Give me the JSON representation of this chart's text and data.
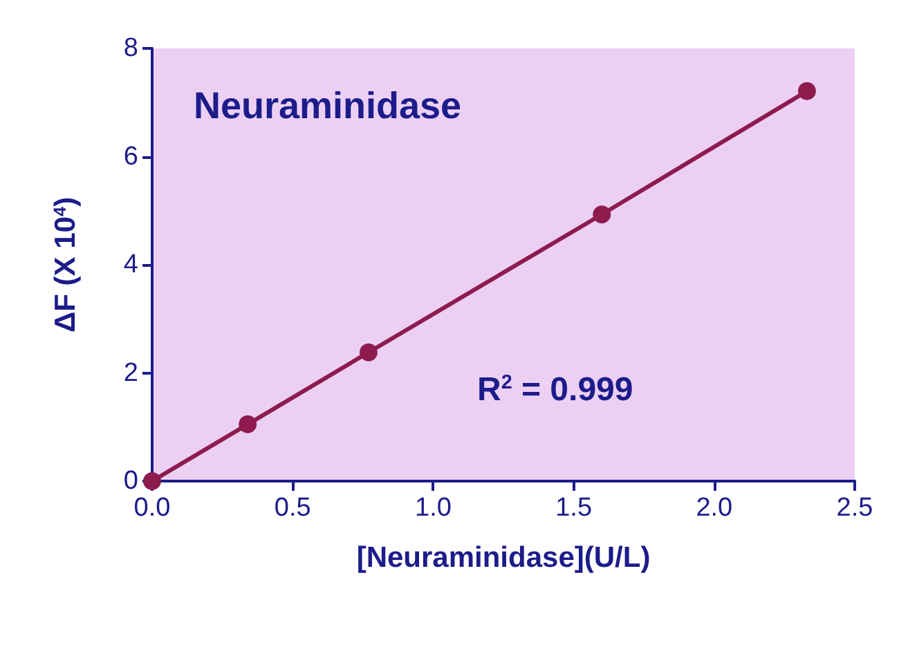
{
  "chart_data": {
    "type": "line",
    "title": "Neuraminidase",
    "xlabel": "[Neuraminidase](U/L)",
    "ylabel": "ΔF (X 10$^{4}$)",
    "annotations": [
      "R$^{2}$ = 0.999"
    ],
    "x": [
      0,
      0.34,
      0.77,
      1.6,
      2.33
    ],
    "series": [
      {
        "color": "#8e1b4e",
        "values": [
          0,
          1.05,
          2.38,
          4.93,
          7.21
        ]
      }
    ],
    "xlim": [
      0,
      2.5
    ],
    "xticks": [
      {
        "value": 0,
        "label": "0.0"
      },
      0.5,
      {
        "value": 1,
        "label": "1.0"
      },
      1.5,
      {
        "value": 2,
        "label": "2.0"
      },
      2.5
    ],
    "ylim": [
      0,
      8
    ],
    "yticks": [
      0,
      2,
      4,
      6,
      8
    ],
    "grid": false,
    "marker": "circle",
    "line_style": "solid"
  }
}
